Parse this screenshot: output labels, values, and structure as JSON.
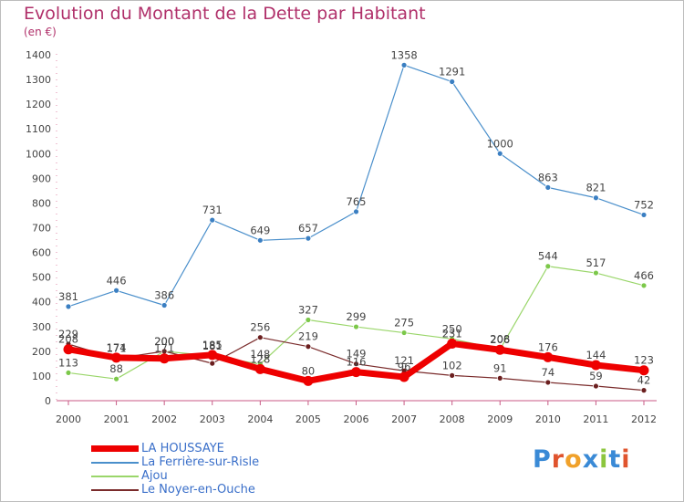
{
  "title": "Evolution du Montant de la Dette par Habitant",
  "subtitle": "(en €)",
  "logo": {
    "text": "Proxiti",
    "letters": [
      {
        "ch": "P",
        "color": "#3a8ad6"
      },
      {
        "ch": "r",
        "color": "#e0542e"
      },
      {
        "ch": "o",
        "color": "#f0a12a"
      },
      {
        "ch": "x",
        "color": "#3a8ad6"
      },
      {
        "ch": "i",
        "color": "#8cc63e"
      },
      {
        "ch": "t",
        "color": "#3a8ad6"
      },
      {
        "ch": "i",
        "color": "#e0542e"
      }
    ]
  },
  "chart_data": {
    "type": "line",
    "title": "Evolution du Montant de la Dette par Habitant",
    "ylabel": "(en €)",
    "x": [
      "2000",
      "2001",
      "2002",
      "2003",
      "2004",
      "2005",
      "2006",
      "2007",
      "2008",
      "2009",
      "2010",
      "2011",
      "2012"
    ],
    "ylim": [
      0,
      1400
    ],
    "yticks": [
      0,
      100,
      200,
      300,
      400,
      500,
      600,
      700,
      800,
      900,
      1000,
      1100,
      1200,
      1300,
      1400
    ],
    "grid": false,
    "legend_position": "bottom-left",
    "series": [
      {
        "name": "La Ferrière-sur-Risle",
        "color": "#4a8fcb",
        "point_color": "#3b7fc2",
        "width": 1.2,
        "values": [
          381,
          446,
          386,
          731,
          649,
          657,
          765,
          1358,
          1291,
          1000,
          863,
          821,
          752
        ],
        "labels": [
          "381",
          "446",
          "386",
          "731",
          "649",
          "657",
          "765",
          "1358",
          "1291",
          "1000",
          "863",
          "821",
          "752"
        ]
      },
      {
        "name": "Ajou",
        "color": "#9ad66a",
        "point_color": "#7cc84a",
        "width": 1.2,
        "values": [
          113,
          88,
          200,
          181,
          148,
          327,
          299,
          275,
          250,
          208,
          544,
          517,
          466
        ],
        "labels": [
          "113",
          "88",
          "200",
          "181",
          "148",
          "327",
          "299",
          "275",
          "250",
          "208",
          "544",
          "517",
          "466"
        ]
      },
      {
        "name": "Le Noyer-en-Ouche",
        "color": "#7a2b2b",
        "point_color": "#6b1f1f",
        "width": 1.2,
        "values": [
          229,
          171,
          200,
          151,
          256,
          219,
          149,
          121,
          102,
          91,
          74,
          59,
          42
        ],
        "labels": [
          "229",
          "171",
          "200",
          "",
          "256",
          "219",
          "149",
          "121",
          "102",
          "91",
          "74",
          "59",
          "42"
        ]
      },
      {
        "name": "LA HOUSSAYE",
        "color": "#ee0000",
        "point_color": "#ee0000",
        "width": 7,
        "values": [
          208,
          174,
          171,
          185,
          128,
          80,
          116,
          96,
          231,
          206,
          176,
          144,
          123
        ],
        "labels": [
          "208",
          "174",
          "171",
          "185",
          "128",
          "80",
          "116",
          "96",
          "231",
          "206",
          "176",
          "144",
          "123"
        ]
      }
    ],
    "legend": [
      {
        "name": "LA HOUSSAYE",
        "color": "#ee0000",
        "thick": true
      },
      {
        "name": "La Ferrière-sur-Risle",
        "color": "#4a8fcb",
        "thick": false
      },
      {
        "name": "Ajou",
        "color": "#9ad66a",
        "thick": false
      },
      {
        "name": "Le Noyer-en-Ouche",
        "color": "#7a2b2b",
        "thick": false
      }
    ]
  }
}
